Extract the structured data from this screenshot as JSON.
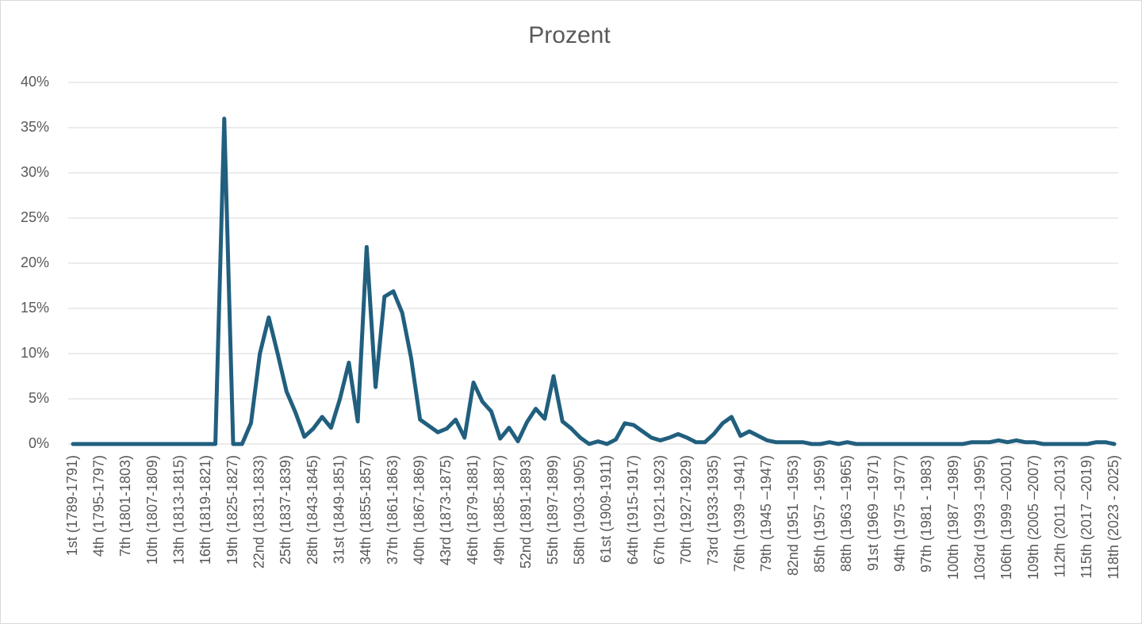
{
  "chart_data": {
    "type": "line",
    "title": "Prozent",
    "categories": [
      "1st (1789-1791)",
      null,
      null,
      "4th (1795-1797)",
      null,
      null,
      "7th (1801-1803)",
      null,
      null,
      "10th (1807-1809)",
      null,
      null,
      "13th (1813-1815)",
      null,
      null,
      "16th (1819-1821)",
      null,
      null,
      "19th (1825-1827)",
      null,
      null,
      "22nd (1831-1833)",
      null,
      null,
      "25th (1837-1839)",
      null,
      null,
      "28th (1843-1845)",
      null,
      null,
      "31st (1849-1851)",
      null,
      null,
      "34th (1855-1857)",
      null,
      null,
      "37th (1861-1863)",
      null,
      null,
      "40th (1867-1869)",
      null,
      null,
      "43rd (1873-1875)",
      null,
      null,
      "46th (1879-1881)",
      null,
      null,
      "49th (1885-1887)",
      null,
      null,
      "52nd (1891-1893)",
      null,
      null,
      "55th (1897-1899)",
      null,
      null,
      "58th (1903-1905)",
      null,
      null,
      "61st (1909-1911)",
      null,
      null,
      "64th (1915-1917)",
      null,
      null,
      "67th (1921-1923)",
      null,
      null,
      "70th (1927-1929)",
      null,
      null,
      "73rd (1933-1935)",
      null,
      null,
      "76th (1939 –1941)",
      null,
      null,
      "79th (1945 –1947)",
      null,
      null,
      "82nd (1951 –1953)",
      null,
      null,
      "85th (1957 - 1959)",
      null,
      null,
      "88th (1963 –1965)",
      null,
      null,
      "91st (1969 –1971)",
      null,
      null,
      "94th (1975 –1977)",
      null,
      null,
      "97th (1981 - 1983)",
      null,
      null,
      "100th (1987 –1989)",
      null,
      null,
      "103rd (1993 –1995)",
      null,
      null,
      "106th (1999 –2001)",
      null,
      null,
      "109th (2005 –2007)",
      null,
      null,
      "112th (2011 –2013)",
      null,
      null,
      "115th (2017 –2019)",
      null,
      null,
      "118th (2023 - 2025)"
    ],
    "series": [
      {
        "name": "Prozent",
        "color": "#215f7e",
        "values": [
          0,
          0,
          0,
          0,
          0,
          0,
          0,
          0,
          0,
          0,
          0,
          0,
          0,
          0,
          0,
          0,
          0,
          36,
          0,
          0,
          2.3,
          10,
          14,
          10,
          5.8,
          3.5,
          0.8,
          1.7,
          3,
          1.8,
          5,
          9,
          2.5,
          21.8,
          6.3,
          16.3,
          16.9,
          14.5,
          9.5,
          2.7,
          2,
          1.3,
          1.7,
          2.7,
          0.7,
          6.8,
          4.7,
          3.6,
          0.6,
          1.8,
          0.3,
          2.4,
          3.9,
          2.8,
          7.5,
          2.5,
          1.7,
          0.7,
          0,
          0.3,
          0,
          0.5,
          2.3,
          2.1,
          1.4,
          0.7,
          0.4,
          0.7,
          1.1,
          0.7,
          0.2,
          0.2,
          1.1,
          2.3,
          3,
          0.9,
          1.4,
          0.9,
          0.4,
          0.2,
          0.2,
          0.2,
          0.2,
          0,
          0,
          0.2,
          0,
          0.2,
          0,
          0,
          0,
          0,
          0,
          0,
          0,
          0,
          0,
          0,
          0,
          0,
          0,
          0.2,
          0.2,
          0.2,
          0.4,
          0.2,
          0.4,
          0.2,
          0.2,
          0,
          0,
          0,
          0,
          0,
          0,
          0.2,
          0.2,
          0
        ]
      }
    ],
    "ylim": [
      0,
      40
    ],
    "yticks": [
      {
        "value": 0,
        "label": "0%"
      },
      {
        "value": 5,
        "label": "5%"
      },
      {
        "value": 10,
        "label": "10%"
      },
      {
        "value": 15,
        "label": "15%"
      },
      {
        "value": 20,
        "label": "20%"
      },
      {
        "value": 25,
        "label": "25%"
      },
      {
        "value": 30,
        "label": "30%"
      },
      {
        "value": 35,
        "label": "35%"
      },
      {
        "value": 40,
        "label": "40%"
      }
    ],
    "grid": true
  }
}
